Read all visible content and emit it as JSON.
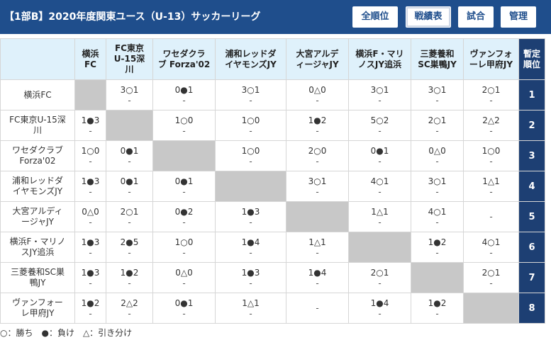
{
  "header": {
    "title": "【1部B】2020年度関東ユース（U-13）サッカーリーグ",
    "buttons": [
      "全順位",
      "戦績表",
      "試合",
      "管理"
    ],
    "active_button": "戦績表"
  },
  "table": {
    "columns": [
      "横浜\nFC",
      "FC東京\nU-15深\n川",
      "ワセダクラ\nブ Forza'02",
      "浦和レッドダ\nイヤモンズJY",
      "大宮アルデ\nィージャJY",
      "横浜F・マリ\nノスJY追浜",
      "三菱養和\nSC巣鴨JY",
      "ヴァンフォ\nーレ甲府JY"
    ],
    "rank_header": "暫定\n順位",
    "rows": [
      {
        "name": "横浜FC",
        "cells": [
          null,
          [
            "3○1",
            "-"
          ],
          [
            "0●1",
            "-"
          ],
          [
            "3○1",
            "-"
          ],
          [
            "0△0",
            "-"
          ],
          [
            "3○1",
            "-"
          ],
          [
            "3○1",
            "-"
          ],
          [
            "2○1",
            "-"
          ]
        ],
        "rank": "1"
      },
      {
        "name": "FC東京U-15深\n川",
        "cells": [
          [
            "1●3",
            "-"
          ],
          null,
          [
            "1○0",
            "-"
          ],
          [
            "1○0",
            "-"
          ],
          [
            "1●2",
            "-"
          ],
          [
            "5○2",
            "-"
          ],
          [
            "2○1",
            "-"
          ],
          [
            "2△2",
            "-"
          ]
        ],
        "rank": "2"
      },
      {
        "name": "ワセダクラブ\nForza'02",
        "cells": [
          [
            "1○0",
            "-"
          ],
          [
            "0●1",
            "-"
          ],
          null,
          [
            "1○0",
            "-"
          ],
          [
            "2○0",
            "-"
          ],
          [
            "0●1",
            "-"
          ],
          [
            "0△0",
            "-"
          ],
          [
            "1○0",
            "-"
          ]
        ],
        "rank": "3"
      },
      {
        "name": "浦和レッドダ\nイヤモンズJY",
        "cells": [
          [
            "1●3",
            "-"
          ],
          [
            "0●1",
            "-"
          ],
          [
            "0●1",
            "-"
          ],
          null,
          [
            "3○1",
            "-"
          ],
          [
            "4○1",
            "-"
          ],
          [
            "3○1",
            "-"
          ],
          [
            "1△1",
            "-"
          ]
        ],
        "rank": "4"
      },
      {
        "name": "大宮アルディ\nージャJY",
        "cells": [
          [
            "0△0",
            "-"
          ],
          [
            "2○1",
            "-"
          ],
          [
            "0●2",
            "-"
          ],
          [
            "1●3",
            "-"
          ],
          null,
          [
            "1△1",
            "-"
          ],
          [
            "4○1",
            "-"
          ],
          [
            "",
            "-"
          ]
        ],
        "rank": "5"
      },
      {
        "name": "横浜F・マリノ\nスJY追浜",
        "cells": [
          [
            "1●3",
            "-"
          ],
          [
            "2●5",
            "-"
          ],
          [
            "1○0",
            "-"
          ],
          [
            "1●4",
            "-"
          ],
          [
            "1△1",
            "-"
          ],
          null,
          [
            "1●2",
            "-"
          ],
          [
            "4○1",
            "-"
          ]
        ],
        "rank": "6"
      },
      {
        "name": "三菱養和SC巣\n鴨JY",
        "cells": [
          [
            "1●3",
            "-"
          ],
          [
            "1●2",
            "-"
          ],
          [
            "0△0",
            "-"
          ],
          [
            "1●3",
            "-"
          ],
          [
            "1●4",
            "-"
          ],
          [
            "2○1",
            "-"
          ],
          null,
          [
            "2○1",
            "-"
          ]
        ],
        "rank": "7"
      },
      {
        "name": "ヴァンフォー\nレ甲府JY",
        "cells": [
          [
            "1●2",
            "-"
          ],
          [
            "2△2",
            "-"
          ],
          [
            "0●1",
            "-"
          ],
          [
            "1△1",
            "-"
          ],
          [
            "",
            "-"
          ],
          [
            "1●4",
            "-"
          ],
          [
            "1●2",
            "-"
          ],
          null
        ],
        "rank": "8"
      }
    ]
  },
  "legend": "○：勝ち　●：負け　△：引き分け"
}
